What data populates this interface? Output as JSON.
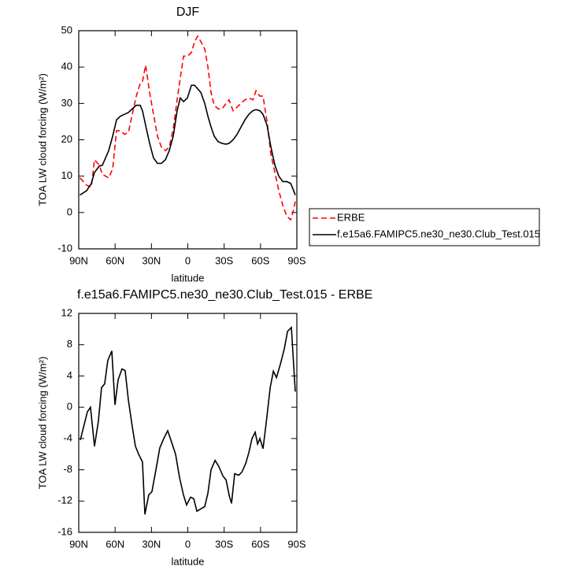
{
  "chart_data": [
    {
      "type": "line",
      "title": "DJF",
      "xlabel": "latitude",
      "ylabel": "TOA LW cloud forcing (W/m²)",
      "x": [
        89,
        83.5,
        79.6,
        77,
        73,
        70.5,
        65.3,
        62,
        58.8,
        55.6,
        52.3,
        49,
        45.8,
        42.5,
        39.3,
        37.4,
        34.8,
        31.5,
        28.3,
        25,
        21.8,
        18.5,
        15.3,
        12,
        8.8,
        6.2,
        3.5,
        0.3,
        -3,
        -5.6,
        -8.2,
        -10.8,
        -14,
        -16.6,
        -19.2,
        -21.8,
        -25,
        -28.3,
        -31.6,
        -34,
        -37.4,
        -40.7,
        -43.9,
        -47.2,
        -50.4,
        -53.7,
        -56.3,
        -59.5,
        -62.1,
        -65.4,
        -68.6,
        -71.9,
        -75.1,
        -78.4,
        -81.6,
        -84.9,
        -86.8,
        -88.7
      ],
      "series": [
        {
          "name": "ERBE",
          "color": "#ff0000",
          "dashed": true,
          "values": [
            9.5,
            7.5,
            7,
            14.5,
            13,
            10.5,
            9.5,
            12,
            22.5,
            22.5,
            21.5,
            22,
            27,
            32,
            35.5,
            36,
            40.5,
            33,
            27,
            21,
            18,
            17,
            18,
            23,
            31,
            37,
            43,
            43,
            44,
            47,
            48.5,
            47,
            45,
            40,
            33,
            29.5,
            28.5,
            28.5,
            30,
            31,
            28,
            29,
            30,
            31,
            31.5,
            31,
            33.5,
            32,
            32,
            25,
            16,
            11,
            6,
            2,
            -1,
            -2,
            0,
            3
          ]
        },
        {
          "name": "f.e15a6.FAMIPC5.ne30_ne30.Club_Test.015",
          "color": "#000000",
          "dashed": false,
          "values": [
            4.8,
            6,
            8,
            11,
            12.8,
            13,
            17,
            21,
            25.5,
            26.5,
            27,
            27.5,
            28.5,
            29.5,
            29.5,
            28,
            24,
            19,
            15,
            13.5,
            13.5,
            14.5,
            17,
            21,
            28,
            31.5,
            30.5,
            31.5,
            35,
            35,
            34,
            33,
            30,
            26.5,
            23.5,
            21,
            19.5,
            19,
            18.8,
            19,
            20,
            21.5,
            23.5,
            25.5,
            27,
            28,
            28.3,
            28,
            27,
            24,
            18,
            13,
            10,
            8.5,
            8.5,
            8,
            6.5,
            4.8
          ]
        }
      ],
      "xlim": [
        90,
        -90
      ],
      "xticks": [
        {
          "value": 90,
          "label": "90N"
        },
        {
          "value": 60,
          "label": "60N"
        },
        {
          "value": 30,
          "label": "30N"
        },
        0,
        {
          "value": -30,
          "label": "30S"
        },
        {
          "value": -60,
          "label": "60S"
        },
        {
          "value": -90,
          "label": "90S"
        }
      ],
      "ylim": [
        -10,
        50
      ],
      "yticks": [
        -10,
        0,
        10,
        20,
        30,
        40,
        50
      ],
      "grid": false,
      "legend": "right"
    },
    {
      "type": "line",
      "title": "f.e15a6.FAMIPC5.ne30_ne30.Club_Test.015 - ERBE",
      "xlabel": "latitude",
      "ylabel": "TOA LW cloud forcing (W/m²)",
      "x": [
        88.7,
        82.9,
        80.3,
        77,
        73.8,
        71.2,
        68.6,
        66,
        62.7,
        60.1,
        57.5,
        54.3,
        51.7,
        49.1,
        45.8,
        43.2,
        40.6,
        37.4,
        35.4,
        32.2,
        29.6,
        26.3,
        23.1,
        19.8,
        16.6,
        13.3,
        10.1,
        6.8,
        3.6,
        1,
        -2.3,
        -4.9,
        -7.5,
        -10.8,
        -14,
        -16.6,
        -19.2,
        -22.5,
        -25.7,
        -29,
        -31.6,
        -34.2,
        -36.1,
        -38.7,
        -42,
        -44.6,
        -47.8,
        -50.4,
        -53,
        -55.6,
        -57.6,
        -59.5,
        -62.1,
        -64.7,
        -68,
        -70.6,
        -73.2,
        -76.4,
        -79.7,
        -82.3,
        -85.5,
        -88.7
      ],
      "values": [
        -4.2,
        -0.6,
        0,
        -5,
        -1.8,
        2.5,
        3,
        6,
        7.2,
        0.3,
        3.5,
        4.9,
        4.7,
        1,
        -2.5,
        -5,
        -6,
        -7,
        -13.7,
        -11.2,
        -10.8,
        -8,
        -5.2,
        -4,
        -3,
        -4.5,
        -6,
        -9,
        -11.2,
        -12.5,
        -11.5,
        -11.7,
        -13.3,
        -13,
        -12.7,
        -11,
        -8,
        -6.8,
        -7.6,
        -8.8,
        -9.3,
        -11.3,
        -12.3,
        -8.5,
        -8.7,
        -8.3,
        -7.2,
        -5.8,
        -4,
        -3.2,
        -4.7,
        -4,
        -5.3,
        -2,
        2.5,
        4.6,
        3.8,
        5.5,
        7.5,
        9.7,
        10.2,
        2
      ],
      "color": "#000000",
      "xlim": [
        90,
        -90
      ],
      "xticks": [
        {
          "value": 90,
          "label": "90N"
        },
        {
          "value": 60,
          "label": "60N"
        },
        {
          "value": 30,
          "label": "30N"
        },
        0,
        {
          "value": -30,
          "label": "30S"
        },
        {
          "value": -60,
          "label": "60S"
        },
        {
          "value": -90,
          "label": "90S"
        }
      ],
      "ylim": [
        -16,
        12
      ],
      "yticks": [
        -16,
        -12,
        -8,
        -4,
        0,
        4,
        8,
        12
      ],
      "grid": false
    }
  ]
}
